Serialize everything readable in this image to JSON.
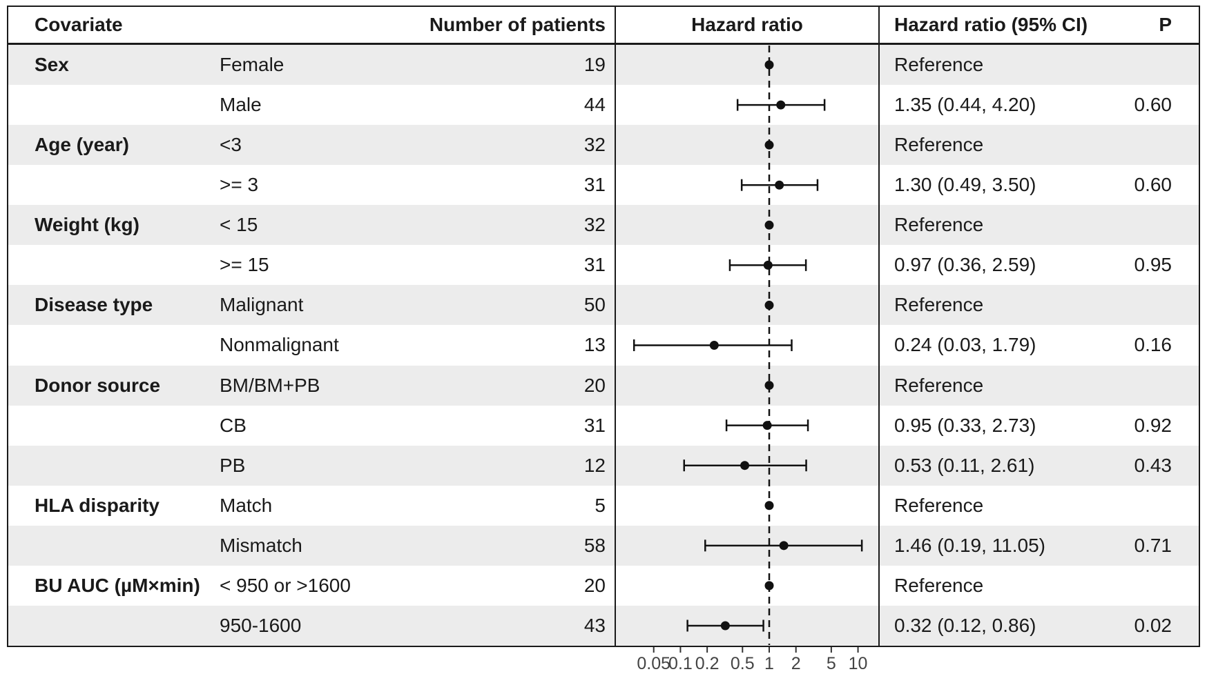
{
  "header": {
    "covariate": "Covariate",
    "patients": "Number of patients",
    "plot": "Hazard ratio",
    "ci": "Hazard ratio (95% CI)",
    "p": "P"
  },
  "colors": {
    "ink": "#1a1a1a",
    "row_shade": "#ececec",
    "marker": "#111111",
    "tick_text": "#444444"
  },
  "chart_data": {
    "type": "forest",
    "x_scale": "log10",
    "x_ticks": [
      0.05,
      0.1,
      0.2,
      0.5,
      1,
      2,
      5,
      10
    ],
    "x_tick_labels": [
      "0.05",
      "0.1",
      "0.2",
      "0.5",
      "1",
      "2",
      "5",
      "10"
    ],
    "x_range": [
      0.018,
      16.9
    ],
    "reference_line": 1,
    "legend": "none",
    "rows": [
      {
        "covariate": "Sex",
        "level": "Female",
        "n": 19,
        "hr": 1,
        "lo": null,
        "hi": null,
        "ci_label": "Reference",
        "p": "",
        "shaded": true
      },
      {
        "covariate": "",
        "level": "Male",
        "n": 44,
        "hr": 1.35,
        "lo": 0.44,
        "hi": 4.2,
        "ci_label": "1.35 (0.44, 4.20)",
        "p": "0.60",
        "shaded": false
      },
      {
        "covariate": "Age (year)",
        "level": "<3",
        "n": 32,
        "hr": 1,
        "lo": null,
        "hi": null,
        "ci_label": "Reference",
        "p": "",
        "shaded": true
      },
      {
        "covariate": "",
        "level": ">= 3",
        "n": 31,
        "hr": 1.3,
        "lo": 0.49,
        "hi": 3.5,
        "ci_label": "1.30 (0.49, 3.50)",
        "p": "0.60",
        "shaded": false
      },
      {
        "covariate": "Weight (kg)",
        "level": "< 15",
        "n": 32,
        "hr": 1,
        "lo": null,
        "hi": null,
        "ci_label": "Reference",
        "p": "",
        "shaded": true
      },
      {
        "covariate": "",
        "level": ">= 15",
        "n": 31,
        "hr": 0.97,
        "lo": 0.36,
        "hi": 2.59,
        "ci_label": "0.97 (0.36, 2.59)",
        "p": "0.95",
        "shaded": false
      },
      {
        "covariate": "Disease type",
        "level": "Malignant",
        "n": 50,
        "hr": 1,
        "lo": null,
        "hi": null,
        "ci_label": "Reference",
        "p": "",
        "shaded": true
      },
      {
        "covariate": "",
        "level": "Nonmalignant",
        "n": 13,
        "hr": 0.24,
        "lo": 0.03,
        "hi": 1.79,
        "ci_label": "0.24 (0.03, 1.79)",
        "p": "0.16",
        "shaded": false
      },
      {
        "covariate": "Donor source",
        "level": "BM/BM+PB",
        "n": 20,
        "hr": 1,
        "lo": null,
        "hi": null,
        "ci_label": "Reference",
        "p": "",
        "shaded": true
      },
      {
        "covariate": "",
        "level": "CB",
        "n": 31,
        "hr": 0.95,
        "lo": 0.33,
        "hi": 2.73,
        "ci_label": "0.95 (0.33, 2.73)",
        "p": "0.92",
        "shaded": false
      },
      {
        "covariate": "",
        "level": "PB",
        "n": 12,
        "hr": 0.53,
        "lo": 0.11,
        "hi": 2.61,
        "ci_label": "0.53 (0.11, 2.61)",
        "p": "0.43",
        "shaded": true
      },
      {
        "covariate": "HLA disparity",
        "level": "Match",
        "n": 5,
        "hr": 1,
        "lo": null,
        "hi": null,
        "ci_label": "Reference",
        "p": "",
        "shaded": false
      },
      {
        "covariate": "",
        "level": "Mismatch",
        "n": 58,
        "hr": 1.46,
        "lo": 0.19,
        "hi": 11.05,
        "ci_label": "1.46 (0.19, 11.05)",
        "p": "0.71",
        "shaded": true
      },
      {
        "covariate": "BU AUC (µM×min)",
        "level": "< 950 or >1600",
        "n": 20,
        "hr": 1,
        "lo": null,
        "hi": null,
        "ci_label": "Reference",
        "p": "",
        "shaded": false
      },
      {
        "covariate": "",
        "level": "950-1600",
        "n": 43,
        "hr": 0.32,
        "lo": 0.12,
        "hi": 0.86,
        "ci_label": "0.32 (0.12, 0.86)",
        "p": "0.02",
        "shaded": true
      }
    ]
  }
}
